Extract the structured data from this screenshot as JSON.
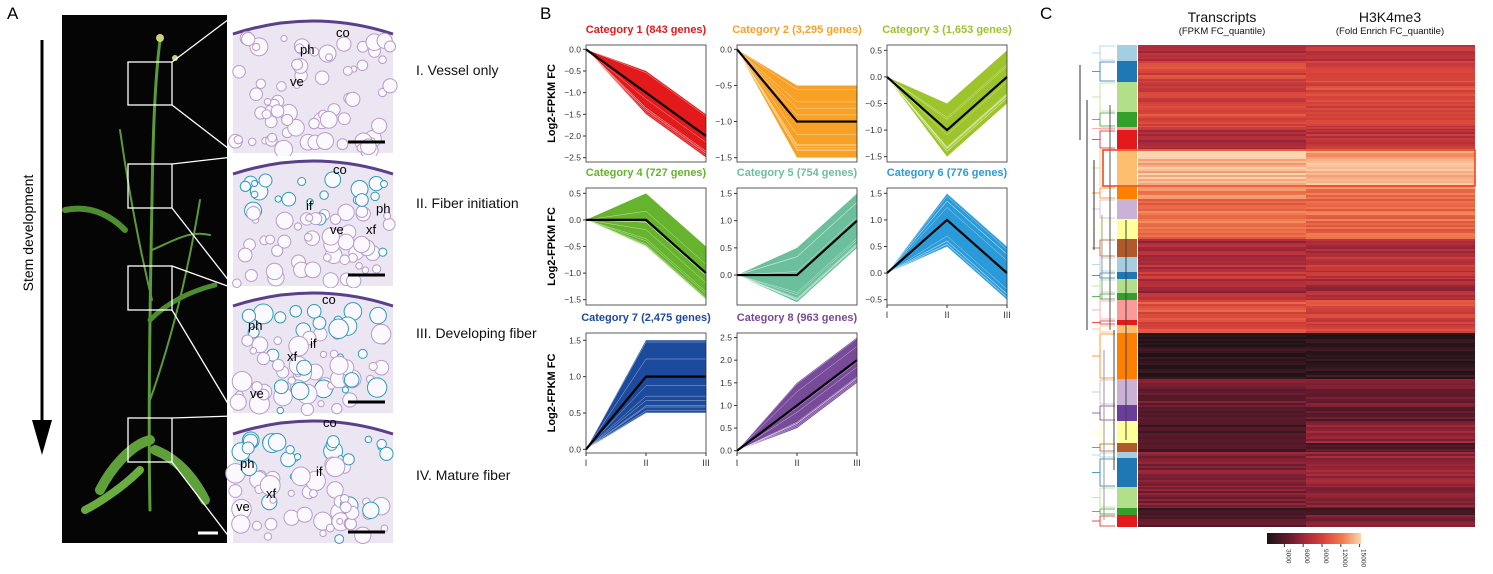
{
  "panels": {
    "a": "A",
    "b": "B",
    "c": "C"
  },
  "panel_a": {
    "arrow_label": "Stem development",
    "stages": [
      "I. Vessel only",
      "II. Fiber initiation",
      "III. Developing fiber",
      "IV. Mature fiber"
    ],
    "micrograph_labels": [
      [
        "co",
        "ph",
        "ve"
      ],
      [
        "co",
        "if",
        "ph",
        "ve",
        "xf"
      ],
      [
        "co",
        "if",
        "ph",
        "xf",
        "ve"
      ],
      [
        "co",
        "if",
        "ph",
        "xf",
        "ve"
      ]
    ]
  },
  "chart_data": [
    {
      "type": "line",
      "title": "Category 1 (843 genes)",
      "color": "#e31a1c",
      "x": [
        "I",
        "II",
        "III"
      ],
      "mean": [
        0,
        -1,
        -2
      ],
      "upper": [
        0,
        -0.5,
        -1.5
      ],
      "lower": [
        0,
        -1.5,
        -2.5
      ],
      "yticks": [
        "0.0",
        "-0.5",
        "-1.0",
        "-1.5",
        "-2.0",
        "-2.5"
      ],
      "ylim": [
        -2.6,
        0.1
      ],
      "ylabel": "Log2-FPKM FC"
    },
    {
      "type": "line",
      "title": "Category 2 (3,295 genes)",
      "color": "#f7a226",
      "x": [
        "I",
        "II",
        "III"
      ],
      "mean": [
        0,
        -1,
        -1
      ],
      "upper": [
        0,
        -0.5,
        -0.5
      ],
      "lower": [
        0,
        -1.5,
        -1.5
      ],
      "yticks": [
        "0.0",
        "-0.5",
        "-1.0",
        "-1.5"
      ],
      "ylim": [
        -1.56,
        0.06
      ],
      "ylabel": ""
    },
    {
      "type": "line",
      "title": "Category 3 (1,653 genes)",
      "color": "#9dc42a",
      "x": [
        "I",
        "II",
        "III"
      ],
      "mean": [
        0,
        -1,
        0
      ],
      "upper": [
        0,
        -0.5,
        0.5
      ],
      "lower": [
        0,
        -1.5,
        -0.5
      ],
      "yticks": [
        "0.5",
        "0.0",
        "-0.5",
        "-1.0",
        "-1.5"
      ],
      "ylim": [
        -1.6,
        0.6
      ],
      "ylabel": ""
    },
    {
      "type": "line",
      "title": "Category 4 (727 genes)",
      "color": "#66b32e",
      "x": [
        "I",
        "II",
        "III"
      ],
      "mean": [
        0,
        0,
        -1
      ],
      "upper": [
        0,
        0.5,
        -0.5
      ],
      "lower": [
        0,
        -0.5,
        -1.5
      ],
      "yticks": [
        "0.5",
        "0.0",
        "-0.5",
        "-1.0",
        "-1.5"
      ],
      "ylim": [
        -1.6,
        0.6
      ],
      "ylabel": "Log2-FPKM FC"
    },
    {
      "type": "line",
      "title": "Category 5 (754 genes)",
      "color": "#6cbf9c",
      "x": [
        "I",
        "II",
        "III"
      ],
      "mean": [
        0,
        0,
        1
      ],
      "upper": [
        0,
        0.5,
        1.5
      ],
      "lower": [
        0,
        -0.5,
        0.5
      ],
      "yticks": [
        "1.5",
        "1.0",
        "0.5",
        "0.0"
      ],
      "ylim": [
        -0.55,
        1.6
      ],
      "ylabel": ""
    },
    {
      "type": "line",
      "title": "Category 6 (776 genes)",
      "color": "#2a9ad8",
      "x": [
        "I",
        "II",
        "III"
      ],
      "mean": [
        0,
        1,
        0
      ],
      "upper": [
        0,
        1.5,
        0.5
      ],
      "lower": [
        0,
        0.5,
        -0.5
      ],
      "yticks": [
        "1.5",
        "1.0",
        "0.5",
        "0.0",
        "-0.5"
      ],
      "ylim": [
        -0.6,
        1.6
      ],
      "ylabel": "",
      "show_x": true
    },
    {
      "type": "line",
      "title": "Category 7 (2,475 genes)",
      "color": "#1c4a9c",
      "x": [
        "I",
        "II",
        "III"
      ],
      "mean": [
        0,
        1,
        1
      ],
      "upper": [
        0,
        1.5,
        1.5
      ],
      "lower": [
        0,
        0.5,
        0.5
      ],
      "yticks": [
        "1.5",
        "1.0",
        "0.5",
        "0.0"
      ],
      "ylim": [
        -0.05,
        1.6
      ],
      "ylabel": "Log2-FPKM FC",
      "show_x": true
    },
    {
      "type": "line",
      "title": "Category 8 (963 genes)",
      "color": "#774a9a",
      "x": [
        "I",
        "II",
        "III"
      ],
      "mean": [
        0,
        1,
        2
      ],
      "upper": [
        0,
        1.5,
        2.5
      ],
      "lower": [
        0,
        0.5,
        1.5
      ],
      "yticks": [
        "2.5",
        "2.0",
        "1.5",
        "1.0",
        "0.5",
        "0.0"
      ],
      "ylim": [
        -0.05,
        2.6
      ],
      "ylabel": "",
      "show_x": true
    }
  ],
  "panel_c": {
    "columns": [
      {
        "title": "Transcripts",
        "subtitle": "(FPKM FC_quantile)"
      },
      {
        "title": "H3K4me3",
        "subtitle": "(Fold Enrich FC_quantile)"
      }
    ],
    "colorbar_ticks": [
      "3000",
      "6000",
      "9000",
      "12000",
      "15000"
    ],
    "colorbar_colors": [
      "#1e1416",
      "#5a1a2c",
      "#a3283a",
      "#d8443a",
      "#f07d4e",
      "#fcd8b4"
    ],
    "highlight_color": "#e8401c"
  }
}
